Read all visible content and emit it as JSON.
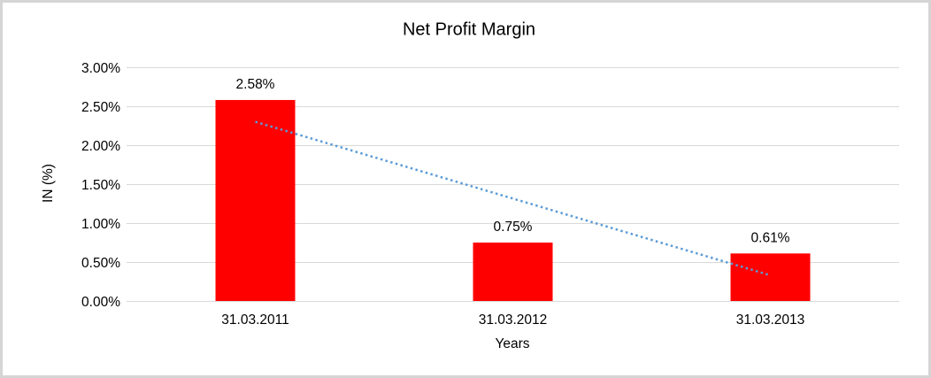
{
  "chart_data": {
    "type": "bar",
    "title": "Net Profit Margin",
    "xlabel": "Years",
    "ylabel": "IN (%)",
    "categories": [
      "31.03.2011",
      "31.03.2012",
      "31.03.2013"
    ],
    "values": [
      2.58,
      0.75,
      0.61
    ],
    "data_labels": [
      "2.58%",
      "0.75%",
      "0.61%"
    ],
    "ylim": [
      0,
      3
    ],
    "ytick_step": 0.5,
    "ytick_labels": [
      "0.00%",
      "0.50%",
      "1.00%",
      "1.50%",
      "2.00%",
      "2.50%",
      "3.00%"
    ],
    "grid": true,
    "legend": "none",
    "bar_color": "#ff0000",
    "gridline_color": "#d9d9d9",
    "text_color": "#000000",
    "trendline": {
      "type": "linear",
      "style": "dotted",
      "color": "#5b9bd5",
      "start_value": 2.3,
      "end_value": 0.33
    }
  }
}
